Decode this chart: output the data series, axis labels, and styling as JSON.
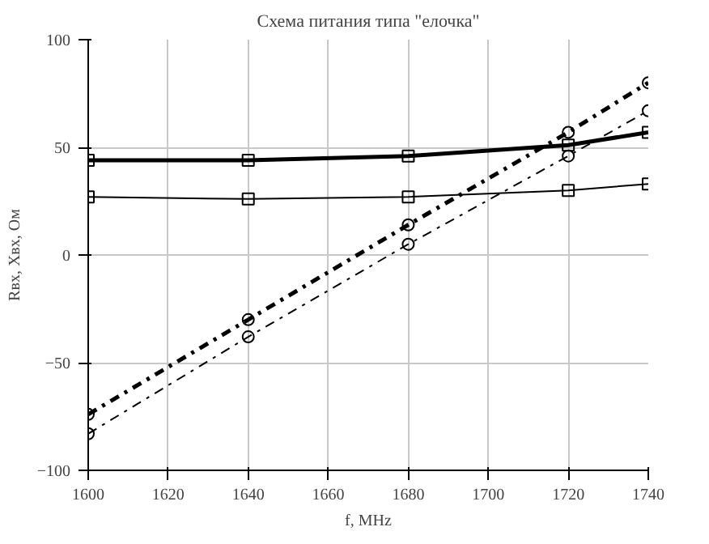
{
  "chart_data": {
    "type": "line",
    "title": "Схема питания типа \"елочка\"",
    "xlabel": "f, MHz",
    "ylabel": "Rвх, Xвх, Ом",
    "x": [
      1600,
      1640,
      1680,
      1720,
      1740
    ],
    "xlim": [
      1600,
      1740
    ],
    "xticks": [
      1600,
      1620,
      1640,
      1660,
      1680,
      1700,
      1720,
      1740
    ],
    "ylim": [
      -100,
      100
    ],
    "yticks": [
      -100,
      -50,
      0,
      50,
      100
    ],
    "grid": true,
    "series": [
      {
        "color": "#000000",
        "values": [
          44,
          44,
          46,
          51,
          57
        ],
        "marker": "square",
        "line_style": "solid"
      },
      {
        "color": "#000000",
        "values": [
          27,
          26,
          27,
          30,
          33
        ],
        "marker": "square",
        "line_style": "solid"
      },
      {
        "color": "#000000",
        "values": [
          -74,
          -30,
          14,
          57,
          80
        ],
        "marker": "circle",
        "line_style": "dashdot"
      },
      {
        "color": "#000000",
        "values": [
          -83,
          -38,
          5,
          46,
          67
        ],
        "marker": "circle",
        "line_style": "dashdot"
      }
    ]
  }
}
